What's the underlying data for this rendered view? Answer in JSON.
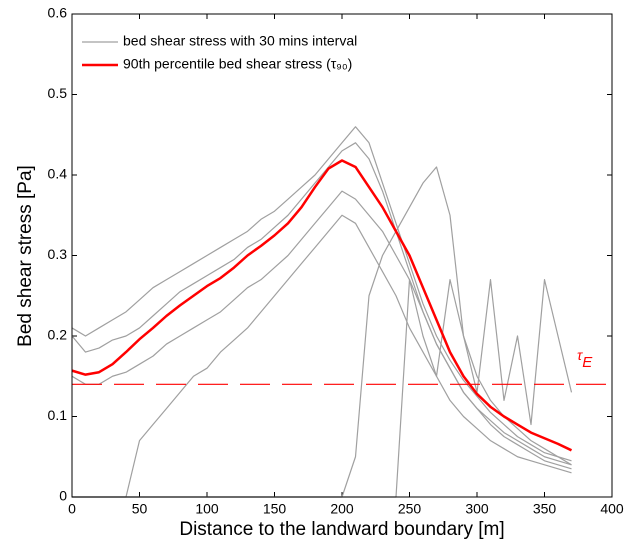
{
  "chart_data": {
    "type": "line",
    "xlabel": "Distance to the landward boundary [m]",
    "ylabel": "Bed shear stress [Pa]",
    "x": [
      0,
      10,
      20,
      30,
      40,
      50,
      60,
      70,
      80,
      90,
      100,
      110,
      120,
      130,
      140,
      150,
      160,
      170,
      180,
      190,
      200,
      210,
      220,
      230,
      240,
      250,
      260,
      270,
      280,
      290,
      300,
      310,
      320,
      330,
      340,
      350,
      360,
      370
    ],
    "series": [
      {
        "name": "bed shear stress with 30 mins interval",
        "color": "#a0a0a0",
        "width": 1.2,
        "values": [
          0.21,
          0.2,
          0.21,
          0.22,
          0.23,
          0.245,
          0.26,
          0.27,
          0.28,
          0.29,
          0.3,
          0.31,
          0.32,
          0.33,
          0.345,
          0.355,
          0.37,
          0.385,
          0.4,
          0.42,
          0.44,
          0.46,
          0.44,
          0.39,
          0.34,
          0.29,
          0.24,
          0.2,
          0.17,
          0.145,
          0.125,
          0.105,
          0.09,
          0.075,
          0.065,
          0.055,
          0.05,
          0.045
        ]
      },
      {
        "color": "#a0a0a0",
        "width": 1.2,
        "values": [
          0.2,
          0.18,
          0.185,
          0.195,
          0.2,
          0.21,
          0.225,
          0.24,
          0.255,
          0.265,
          0.275,
          0.285,
          0.295,
          0.31,
          0.32,
          0.335,
          0.35,
          0.37,
          0.39,
          0.41,
          0.43,
          0.44,
          0.42,
          0.38,
          0.33,
          0.28,
          0.23,
          0.19,
          0.16,
          0.13,
          0.11,
          0.095,
          0.08,
          0.07,
          0.06,
          0.05,
          0.045,
          0.04
        ]
      },
      {
        "color": "#a0a0a0",
        "width": 1.2,
        "values": [
          0.15,
          0.14,
          0.14,
          0.15,
          0.155,
          0.165,
          0.175,
          0.19,
          0.2,
          0.21,
          0.22,
          0.23,
          0.245,
          0.26,
          0.27,
          0.285,
          0.3,
          0.32,
          0.34,
          0.36,
          0.38,
          0.37,
          0.35,
          0.33,
          0.3,
          0.27,
          0.23,
          0.19,
          0.16,
          0.13,
          0.11,
          0.09,
          0.075,
          0.065,
          0.055,
          0.045,
          0.04,
          0.035
        ]
      },
      {
        "color": "#a0a0a0",
        "width": 1.2,
        "values": [
          0,
          0,
          0,
          0,
          0,
          0.07,
          0.09,
          0.11,
          0.13,
          0.15,
          0.16,
          0.18,
          0.195,
          0.21,
          0.23,
          0.25,
          0.27,
          0.29,
          0.31,
          0.33,
          0.35,
          0.34,
          0.31,
          0.28,
          0.25,
          0.21,
          0.18,
          0.15,
          0.12,
          0.1,
          0.085,
          0.07,
          0.06,
          0.05,
          0.045,
          0.04,
          0.035,
          0.03
        ]
      },
      {
        "color": "#a0a0a0",
        "width": 1.2,
        "values": [
          0,
          0,
          0,
          0,
          0,
          0,
          0,
          0,
          0,
          0,
          0,
          0,
          0,
          0,
          0,
          0,
          0,
          0,
          0,
          0,
          0,
          0.05,
          0.25,
          0.3,
          0.33,
          0.36,
          0.39,
          0.41,
          0.35,
          0.2,
          0.15,
          0.12,
          0.1,
          0.085,
          0.07,
          0.06,
          0.05,
          0.04
        ]
      },
      {
        "color": "#a0a0a0",
        "width": 1.2,
        "values": [
          0,
          0,
          0,
          0,
          0,
          0,
          0,
          0,
          0,
          0,
          0,
          0,
          0,
          0,
          0,
          0,
          0,
          0,
          0,
          0,
          0,
          0,
          0,
          0,
          0,
          0.27,
          0.2,
          0.15,
          0.27,
          0.2,
          0.13,
          0.27,
          0.12,
          0.2,
          0.09,
          0.27,
          0.2,
          0.13
        ]
      },
      {
        "name": "90th percentile bed shear stress (τ₉₀)",
        "color": "#ff0000",
        "width": 2.5,
        "values": [
          0.157,
          0.152,
          0.155,
          0.165,
          0.18,
          0.196,
          0.21,
          0.225,
          0.238,
          0.25,
          0.262,
          0.272,
          0.285,
          0.3,
          0.312,
          0.325,
          0.34,
          0.36,
          0.385,
          0.408,
          0.418,
          0.41,
          0.385,
          0.36,
          0.33,
          0.3,
          0.26,
          0.22,
          0.18,
          0.15,
          0.128,
          0.112,
          0.1,
          0.09,
          0.08,
          0.073,
          0.066,
          0.058
        ]
      }
    ],
    "threshold": 0.14,
    "threshold_color": "#ff0000",
    "threshold_label": "τ",
    "threshold_label_sub": "E",
    "xlim": [
      0,
      400
    ],
    "xticks": [
      0,
      50,
      100,
      150,
      200,
      250,
      300,
      350,
      400
    ],
    "ylim": [
      0,
      0.6
    ],
    "yticks": [
      0,
      0.1,
      0.2,
      0.3,
      0.4,
      0.5,
      0.6
    ],
    "legend": "upper-left",
    "grid": false
  }
}
